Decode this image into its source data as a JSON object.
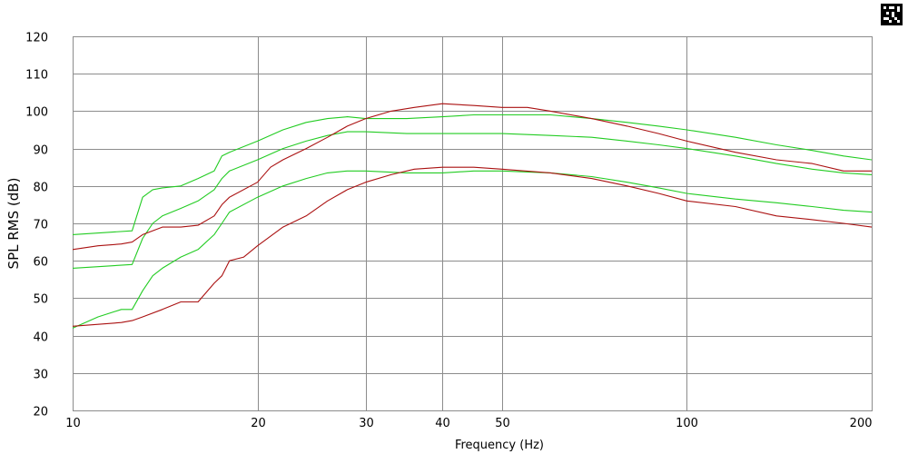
{
  "chart_data": {
    "type": "line",
    "title": "",
    "xlabel": "Frequency (Hz)",
    "ylabel": "SPL RMS (dB)",
    "x_scale": "log",
    "xlim": [
      10,
      200
    ],
    "ylim": [
      20,
      120
    ],
    "grid": true,
    "x_ticks": [
      10,
      20,
      30,
      40,
      50,
      100,
      200
    ],
    "x_tick_labels": [
      "10",
      "20",
      "30",
      "40",
      "50",
      "100",
      "200"
    ],
    "y_ticks": [
      20,
      30,
      40,
      50,
      60,
      70,
      80,
      90,
      100,
      110,
      120
    ],
    "y_tick_labels": [
      "20",
      "30",
      "40",
      "50",
      "60",
      "70",
      "80",
      "90",
      "100",
      "110",
      "120"
    ],
    "colors": {
      "green": "#22cc22",
      "red": "#aa1111",
      "grid": "#8c8c8c"
    },
    "series": [
      {
        "color": "#22cc22",
        "points": [
          [
            10,
            67
          ],
          [
            12.5,
            68
          ],
          [
            13,
            77
          ],
          [
            13.5,
            79
          ],
          [
            14,
            79.5
          ],
          [
            15,
            80
          ],
          [
            16,
            82
          ],
          [
            17,
            84
          ],
          [
            17.5,
            88
          ],
          [
            18,
            89
          ],
          [
            20,
            92
          ],
          [
            22,
            95
          ],
          [
            24,
            97
          ],
          [
            26,
            98
          ],
          [
            28,
            98.5
          ],
          [
            30,
            98
          ],
          [
            35,
            98
          ],
          [
            40,
            98.5
          ],
          [
            45,
            99
          ],
          [
            50,
            99
          ],
          [
            60,
            99
          ],
          [
            70,
            98
          ],
          [
            80,
            97
          ],
          [
            90,
            96
          ],
          [
            100,
            95
          ],
          [
            120,
            93
          ],
          [
            140,
            91
          ],
          [
            160,
            89.5
          ],
          [
            180,
            88
          ],
          [
            200,
            87
          ]
        ]
      },
      {
        "color": "#22cc22",
        "points": [
          [
            10,
            58
          ],
          [
            12.5,
            59
          ],
          [
            13,
            66
          ],
          [
            13.5,
            70
          ],
          [
            14,
            72
          ],
          [
            15,
            74
          ],
          [
            16,
            76
          ],
          [
            17,
            79
          ],
          [
            17.5,
            82
          ],
          [
            18,
            84
          ],
          [
            20,
            87
          ],
          [
            22,
            90
          ],
          [
            24,
            92
          ],
          [
            26,
            93.5
          ],
          [
            28,
            94.5
          ],
          [
            30,
            94.5
          ],
          [
            35,
            94
          ],
          [
            40,
            94
          ],
          [
            45,
            94
          ],
          [
            50,
            94
          ],
          [
            60,
            93.5
          ],
          [
            70,
            93
          ],
          [
            80,
            92
          ],
          [
            90,
            91
          ],
          [
            100,
            90
          ],
          [
            120,
            88
          ],
          [
            140,
            86
          ],
          [
            160,
            84.5
          ],
          [
            180,
            83.5
          ],
          [
            200,
            83
          ]
        ]
      },
      {
        "color": "#22cc22",
        "points": [
          [
            10,
            42
          ],
          [
            11,
            45
          ],
          [
            12,
            47
          ],
          [
            12.5,
            47
          ],
          [
            13,
            52
          ],
          [
            13.5,
            56
          ],
          [
            14,
            58
          ],
          [
            15,
            61
          ],
          [
            16,
            63
          ],
          [
            17,
            67
          ],
          [
            17.5,
            70
          ],
          [
            18,
            73
          ],
          [
            20,
            77
          ],
          [
            22,
            80
          ],
          [
            24,
            82
          ],
          [
            26,
            83.5
          ],
          [
            28,
            84
          ],
          [
            30,
            84
          ],
          [
            35,
            83.5
          ],
          [
            40,
            83.5
          ],
          [
            45,
            84
          ],
          [
            50,
            84
          ],
          [
            60,
            83.5
          ],
          [
            70,
            82.5
          ],
          [
            80,
            81
          ],
          [
            90,
            79.5
          ],
          [
            100,
            78
          ],
          [
            120,
            76.5
          ],
          [
            140,
            75.5
          ],
          [
            160,
            74.5
          ],
          [
            180,
            73.5
          ],
          [
            200,
            73
          ]
        ]
      },
      {
        "color": "#aa1111",
        "points": [
          [
            10,
            63
          ],
          [
            11,
            64
          ],
          [
            12,
            64.5
          ],
          [
            12.5,
            65
          ],
          [
            13,
            67
          ],
          [
            14,
            69
          ],
          [
            15,
            69
          ],
          [
            16,
            69.5
          ],
          [
            17,
            72
          ],
          [
            17.5,
            75
          ],
          [
            18,
            77
          ],
          [
            20,
            81
          ],
          [
            21,
            85
          ],
          [
            22,
            87
          ],
          [
            24,
            90
          ],
          [
            26,
            93
          ],
          [
            28,
            96
          ],
          [
            30,
            98
          ],
          [
            33,
            100
          ],
          [
            36,
            101
          ],
          [
            40,
            102
          ],
          [
            45,
            101.5
          ],
          [
            50,
            101
          ],
          [
            55,
            101
          ],
          [
            60,
            100
          ],
          [
            70,
            98
          ],
          [
            80,
            96
          ],
          [
            90,
            94
          ],
          [
            100,
            92
          ],
          [
            120,
            89
          ],
          [
            140,
            87
          ],
          [
            160,
            86
          ],
          [
            180,
            84
          ],
          [
            200,
            84
          ]
        ]
      },
      {
        "color": "#aa1111",
        "points": [
          [
            10,
            42.5
          ],
          [
            11,
            43
          ],
          [
            12,
            43.5
          ],
          [
            12.5,
            44
          ],
          [
            13,
            45
          ],
          [
            14,
            47
          ],
          [
            15,
            49
          ],
          [
            16,
            49
          ],
          [
            17,
            54
          ],
          [
            17.5,
            56
          ],
          [
            18,
            60
          ],
          [
            19,
            61
          ],
          [
            20,
            64
          ],
          [
            22,
            69
          ],
          [
            24,
            72
          ],
          [
            26,
            76
          ],
          [
            28,
            79
          ],
          [
            30,
            81
          ],
          [
            33,
            83
          ],
          [
            36,
            84.5
          ],
          [
            40,
            85
          ],
          [
            45,
            85
          ],
          [
            50,
            84.5
          ],
          [
            60,
            83.5
          ],
          [
            70,
            82
          ],
          [
            80,
            80
          ],
          [
            90,
            78
          ],
          [
            100,
            76
          ],
          [
            120,
            74.5
          ],
          [
            140,
            72
          ],
          [
            160,
            71
          ],
          [
            180,
            70
          ],
          [
            200,
            69
          ]
        ]
      }
    ]
  }
}
